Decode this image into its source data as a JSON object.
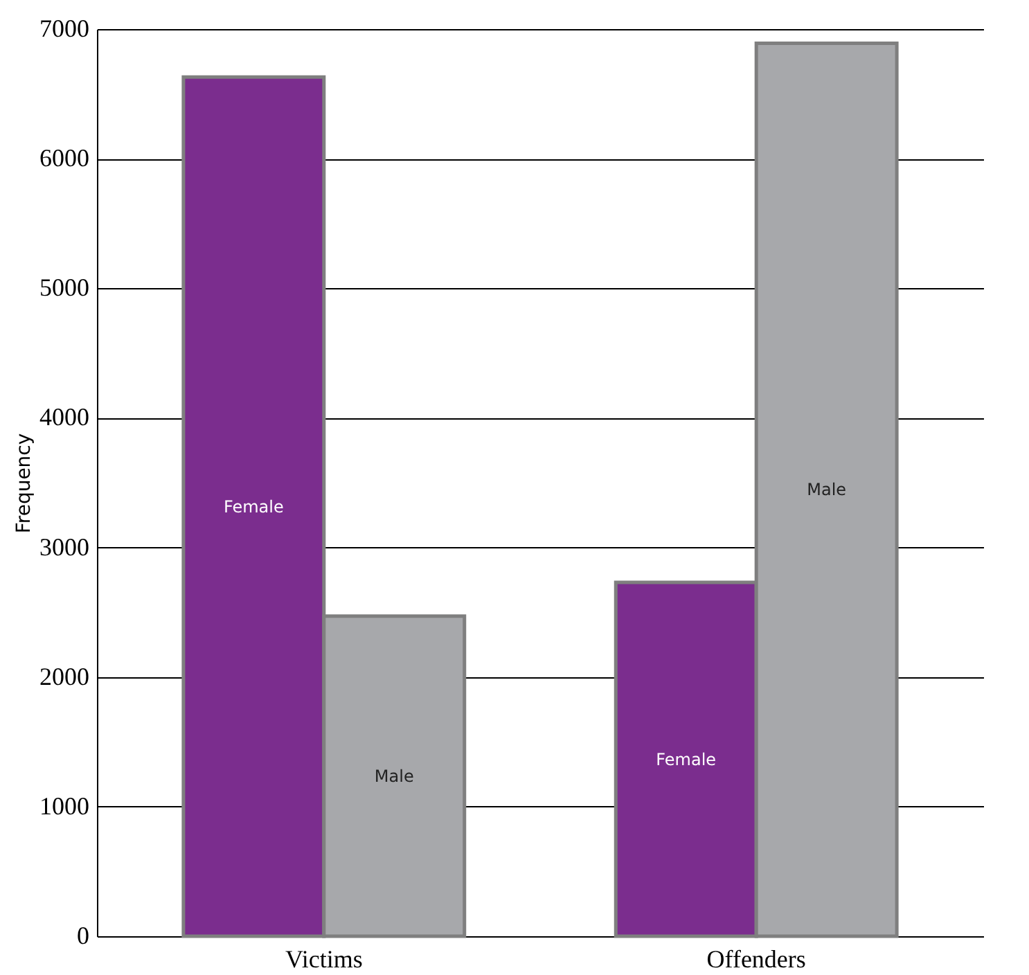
{
  "chart_data": {
    "type": "bar",
    "ylabel": "Frequency",
    "categories": [
      "Victims",
      "Offenders"
    ],
    "series": [
      {
        "name": "Female",
        "color": "#7b2d8e",
        "values": [
          6630,
          2730
        ]
      },
      {
        "name": "Male",
        "color": "#a7a8ab",
        "values": [
          2470,
          6890
        ]
      }
    ],
    "ylim": [
      0,
      7000
    ],
    "yticks": [
      0,
      1000,
      2000,
      3000,
      4000,
      5000,
      6000,
      7000
    ],
    "grid": "y",
    "legend": false
  }
}
